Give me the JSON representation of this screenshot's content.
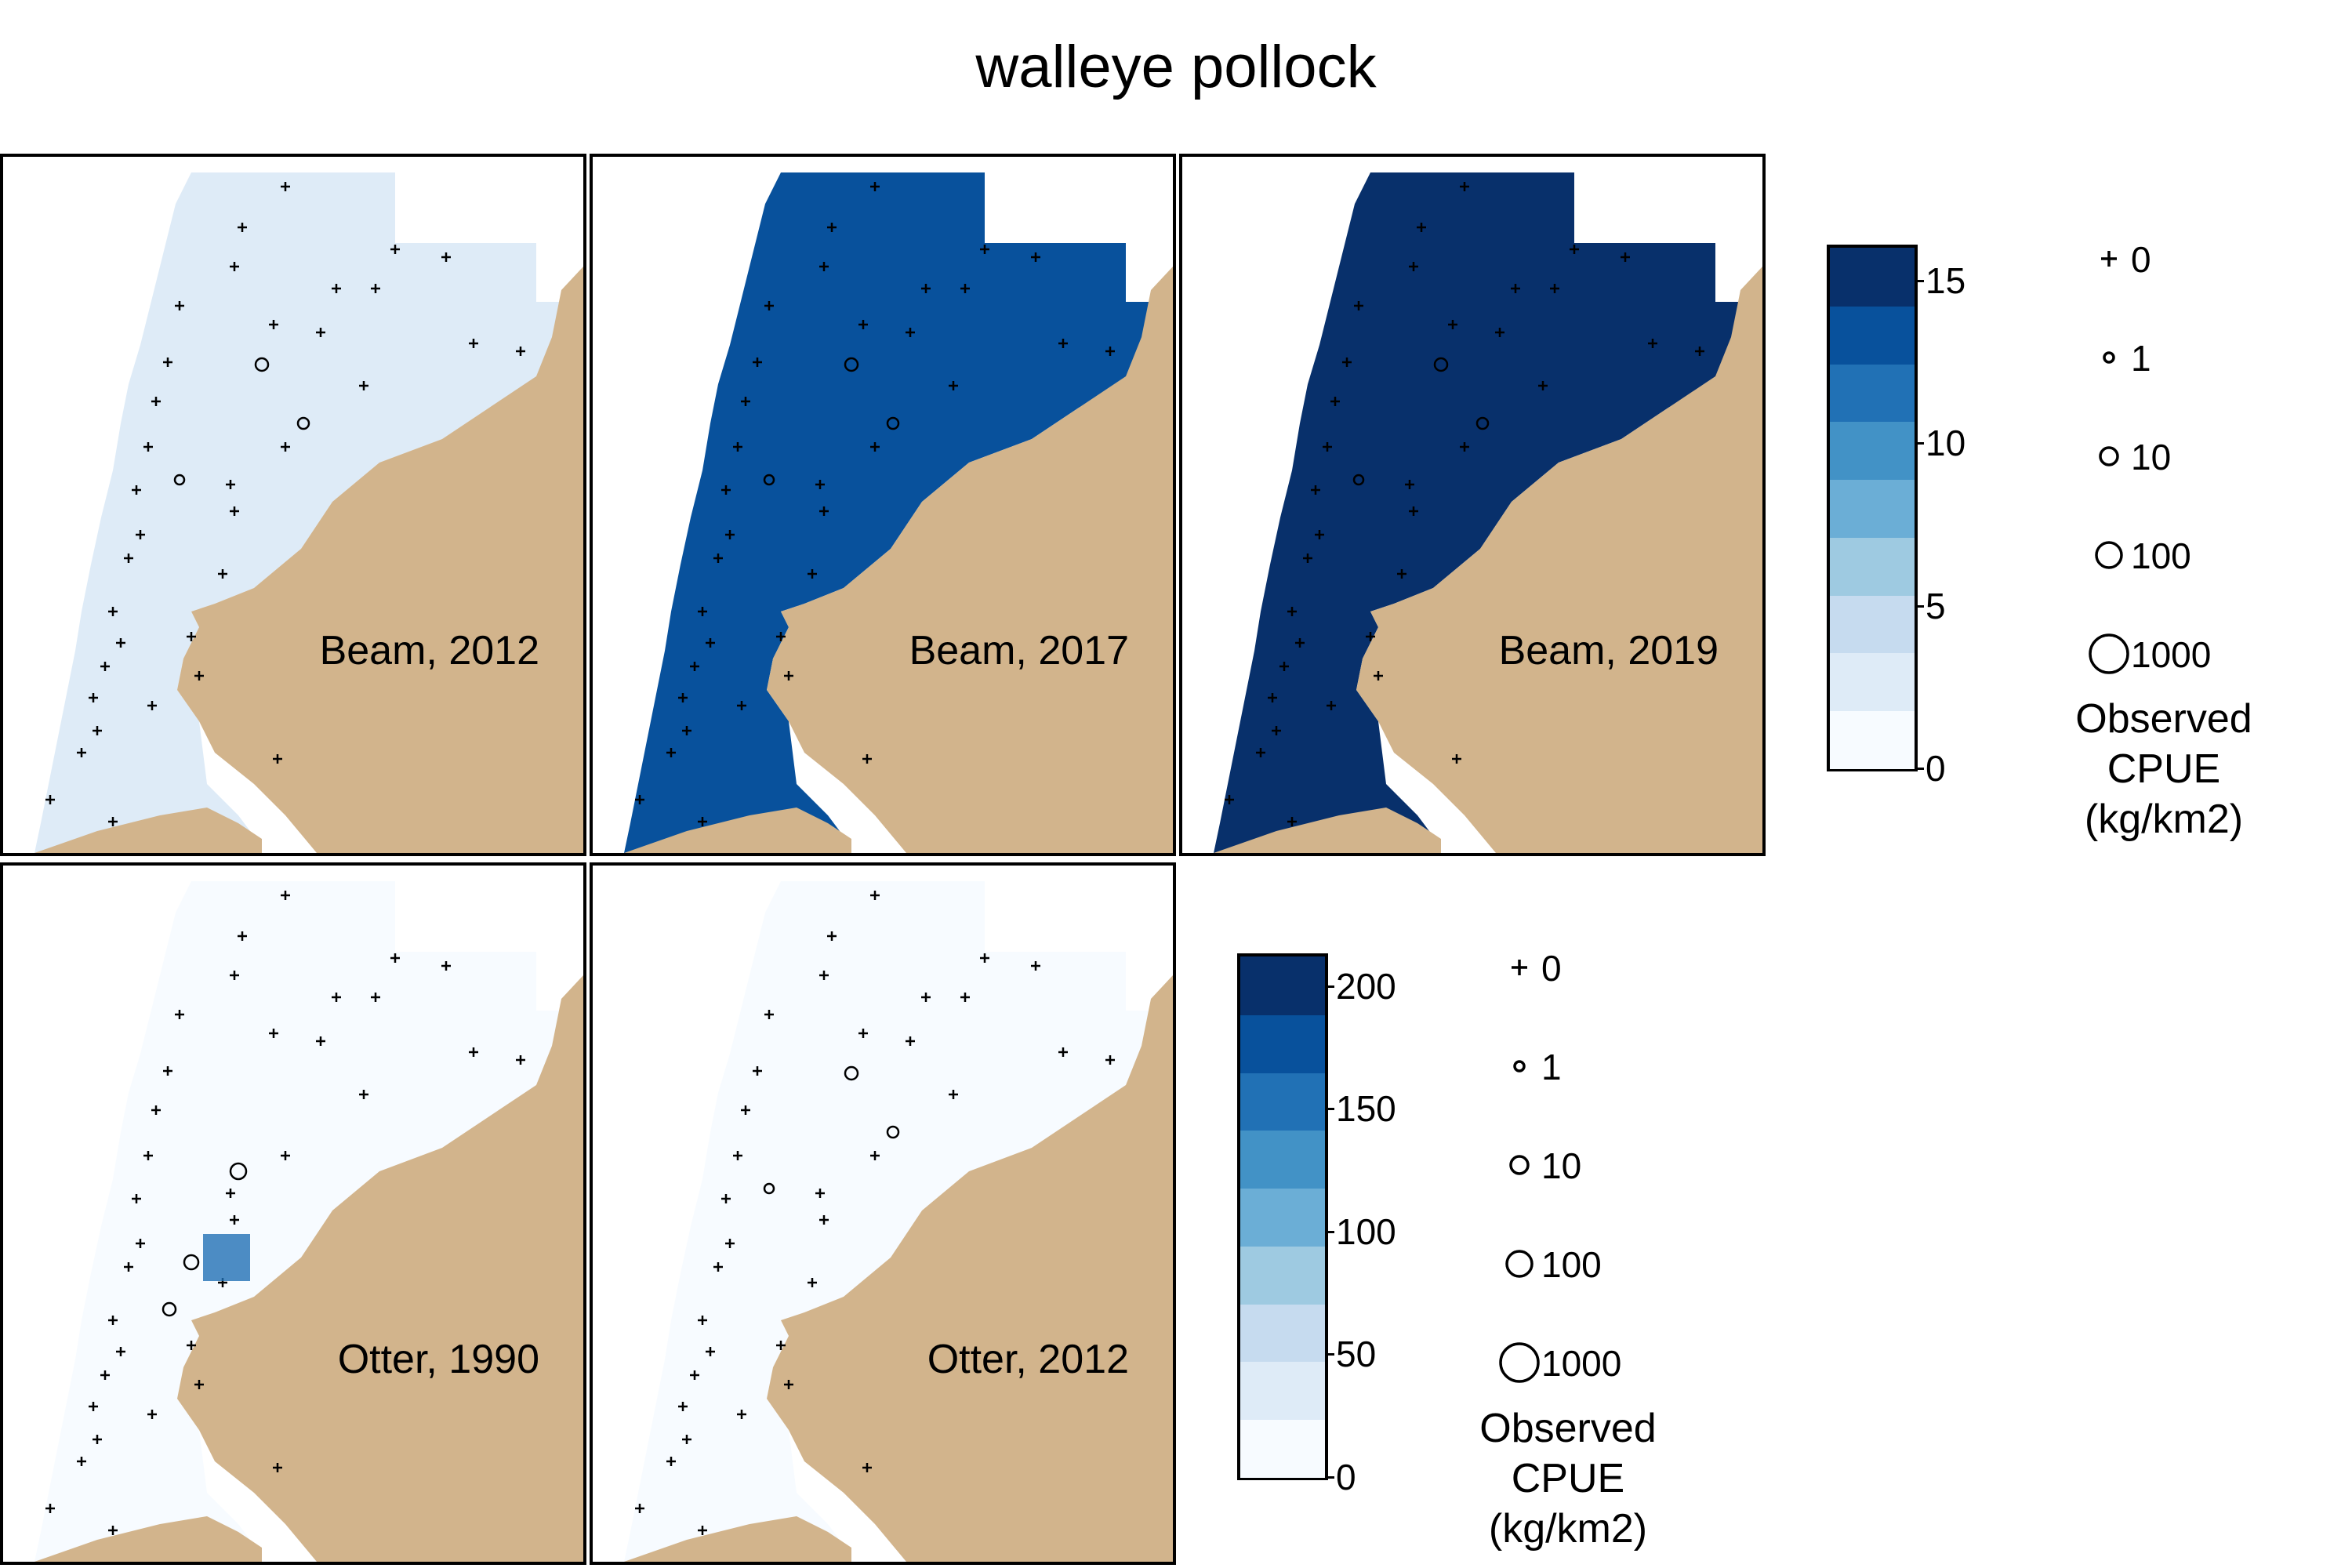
{
  "title": "walleye pollock",
  "panels": [
    {
      "id": "beam-2012",
      "label": "Beam, 2012",
      "fill_level": 1,
      "fill_color": "#deebf7"
    },
    {
      "id": "beam-2017",
      "label": "Beam, 2017",
      "fill_level": 12,
      "fill_color": "#08519c"
    },
    {
      "id": "beam-2019",
      "label": "Beam, 2019",
      "fill_level": 15,
      "fill_color": "#08306b"
    },
    {
      "id": "otter-1990",
      "label": "Otter, 1990",
      "fill_level": 0,
      "fill_color": "#f7fbff"
    },
    {
      "id": "otter-2012",
      "label": "Otter, 2012",
      "fill_level": 0,
      "fill_color": "#f7fbff"
    }
  ],
  "colors": {
    "land": "#d2b48c",
    "palette": [
      "#f7fbff",
      "#deebf7",
      "#c6dbef",
      "#9ecae1",
      "#6baed6",
      "#4292c6",
      "#2171b5",
      "#08519c",
      "#08306b"
    ]
  },
  "beam_colorbar": {
    "ticks": [
      "15",
      "10",
      "5",
      "0"
    ],
    "tick_values": [
      15,
      10,
      5,
      0
    ],
    "max": 16
  },
  "otter_colorbar": {
    "ticks": [
      "200",
      "150",
      "100",
      "50",
      "0"
    ],
    "tick_values": [
      200,
      150,
      100,
      50,
      0
    ],
    "max": 212
  },
  "size_legend": {
    "items": [
      {
        "symbol": "plus",
        "label": "0"
      },
      {
        "symbol": "circle",
        "label": "1"
      },
      {
        "symbol": "circle",
        "label": "10"
      },
      {
        "symbol": "circle",
        "label": "100"
      },
      {
        "symbol": "circle",
        "label": "1000"
      }
    ],
    "title_line1": "Observed",
    "title_line2": "CPUE",
    "title_line3": "(kg/km2)"
  }
}
